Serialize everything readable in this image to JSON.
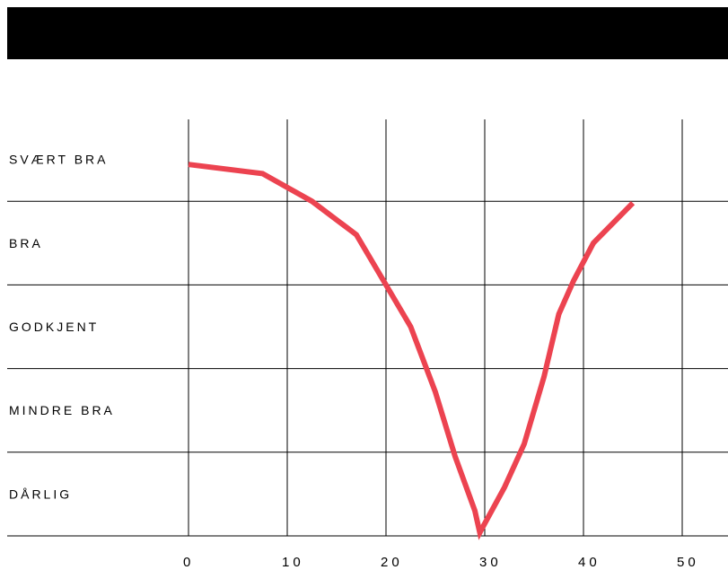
{
  "colors": {
    "header": "#000000",
    "line": "#ec4350",
    "grid": "#000000",
    "background": "#ffffff"
  },
  "chart_data": {
    "type": "line",
    "title": "",
    "xlabel": "",
    "ylabel": "",
    "xlim": [
      0,
      50
    ],
    "ylim": [
      0,
      5
    ],
    "grid": true,
    "legend": "none",
    "x_ticks": [
      0,
      10,
      20,
      30,
      40,
      50
    ],
    "x_tick_labels": [
      "0",
      "10",
      "20",
      "30",
      "40",
      "50"
    ],
    "y_categories": [
      "SVÆRT BRA",
      "BRA",
      "GODKJENT",
      "MINDRE BRA",
      "DÅRLIG"
    ],
    "series": [
      {
        "color": "#ec4350",
        "x": [
          0,
          7.5,
          12.5,
          17,
          20,
          22.5,
          25,
          27,
          29,
          29.5,
          32,
          34,
          36,
          37.5,
          39,
          41,
          45
        ],
        "y": [
          4.44,
          4.33,
          4.0,
          3.6,
          3.0,
          2.5,
          1.72,
          0.95,
          0.3,
          0.04,
          0.58,
          1.1,
          1.9,
          2.65,
          3.05,
          3.5,
          3.98
        ]
      }
    ]
  }
}
